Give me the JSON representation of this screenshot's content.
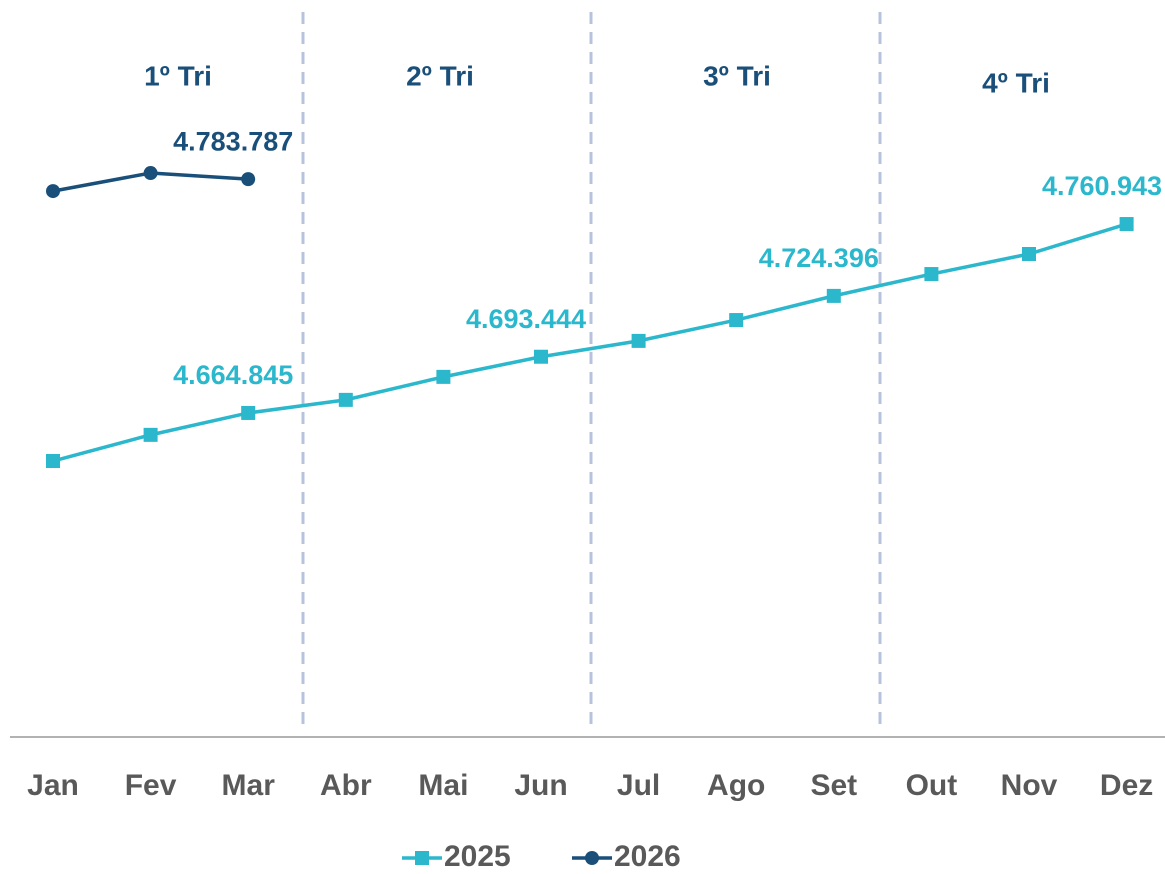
{
  "chart_data": {
    "type": "line",
    "categories": [
      "Jan",
      "Fev",
      "Mar",
      "Abr",
      "Mai",
      "Jun",
      "Jul",
      "Ago",
      "Set",
      "Out",
      "Nov",
      "Dez"
    ],
    "series": [
      {
        "name": "2025",
        "color": "#2bb7cc",
        "marker": "square",
        "values": [
          4640400,
          4653700,
          4664845,
          4671500,
          4683200,
          4693444,
          4701500,
          4712100,
          4724396,
          4735500,
          4745700,
          4760943
        ],
        "value_labels": [
          null,
          null,
          "4.664.845",
          null,
          null,
          "4.693.444",
          null,
          null,
          "4.724.396",
          null,
          null,
          "4.760.943"
        ]
      },
      {
        "name": "2026",
        "color": "#1a4f7a",
        "marker": "circle",
        "values": [
          4777700,
          4786900,
          4783787,
          null,
          null,
          null,
          null,
          null,
          null,
          null,
          null,
          null
        ],
        "value_labels": [
          null,
          null,
          "4.783.787",
          null,
          null,
          null,
          null,
          null,
          null,
          null,
          null,
          null
        ]
      }
    ],
    "annotations": [
      "1º Tri",
      "2º Tri",
      "3º Tri",
      "4º Tri"
    ],
    "ylim": [
      4500000,
      4880000
    ],
    "legend": "bottom"
  }
}
